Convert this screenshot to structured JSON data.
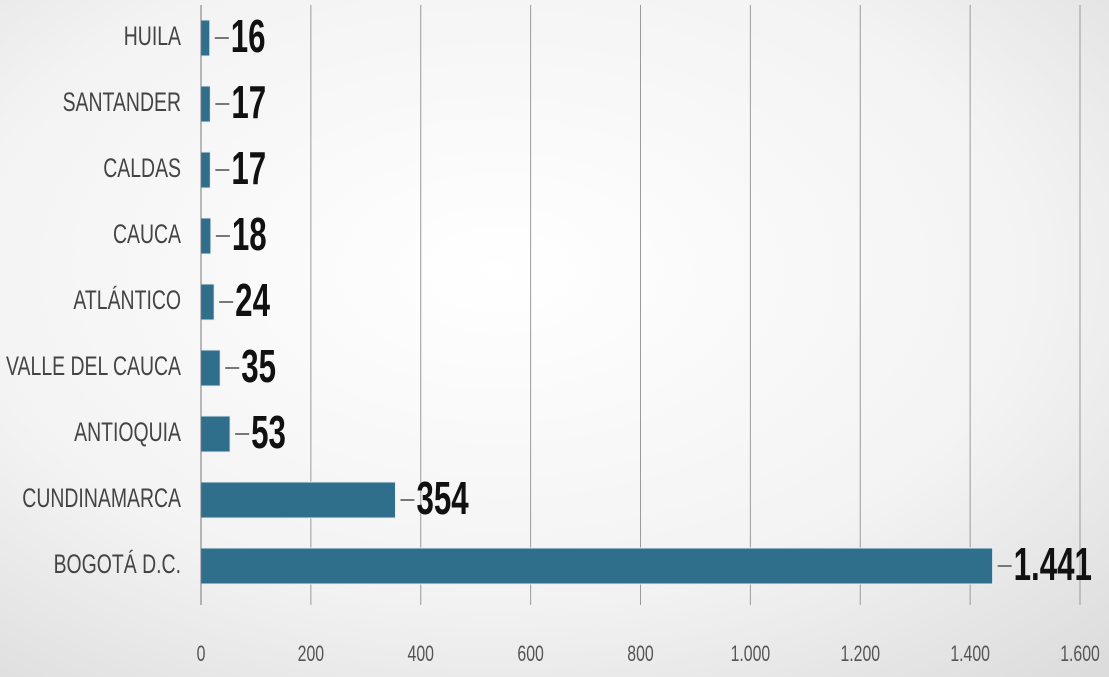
{
  "chart_data": {
    "type": "barh",
    "categories": [
      "HUILA",
      "SANTANDER",
      "CALDAS",
      "CAUCA",
      "ATLÁNTICO",
      "VALLE DEL CAUCA",
      "ANTIOQUIA",
      "CUNDINAMARCA",
      "BOGOTÁ D.C."
    ],
    "values": [
      16,
      17,
      17,
      18,
      24,
      35,
      53,
      354,
      1441
    ],
    "value_labels": [
      "16",
      "17",
      "17",
      "18",
      "24",
      "35",
      "53",
      "354",
      "1.441"
    ],
    "color": "#2f6f8c",
    "xlim": [
      0,
      1600
    ],
    "xticks": [
      0,
      200,
      400,
      600,
      800,
      {
        "value": 1000,
        "label": "1.000"
      },
      {
        "value": 1200,
        "label": "1.200"
      },
      {
        "value": 1400,
        "label": "1.400"
      },
      {
        "value": 1600,
        "label": "1.600"
      }
    ],
    "grid": true
  }
}
